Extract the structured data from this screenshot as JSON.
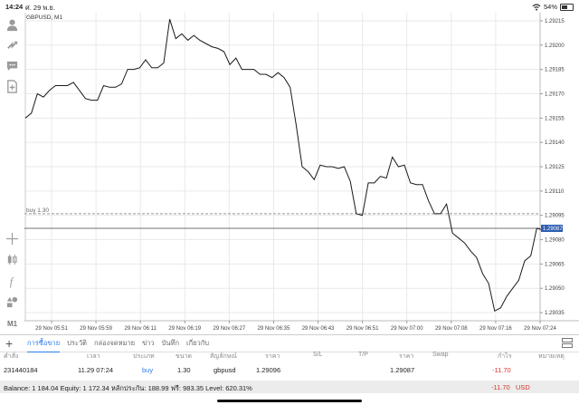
{
  "status": {
    "time": "14:24",
    "date": "ศ. 29 พ.ย.",
    "battery": "54%",
    "battery_level": 54
  },
  "sidebar": {
    "icons": [
      "user-icon",
      "trade-icon",
      "chat-icon",
      "document-add-icon",
      "crosshair-icon",
      "indicators-icon",
      "function-icon",
      "objects-icon"
    ],
    "timeframe": "M1"
  },
  "chart": {
    "symbol_label": "GBPUSD, M1",
    "order_line_label": "buy 1.30",
    "order_price": 1.29096,
    "current_price_label": "1.29087",
    "current_price": 1.29087,
    "colors": {
      "price_line": "#1a1a1a",
      "price_tag_bg": "#2f5fb3",
      "grid": "#e9e9e9"
    }
  },
  "chart_data": {
    "type": "line",
    "title": "GBPUSD, M1",
    "ylim": [
      1.2903,
      1.2922
    ],
    "y_ticks": [
      "1.29215",
      "1.29200",
      "1.29185",
      "1.29170",
      "1.29155",
      "1.29140",
      "1.29125",
      "1.29110",
      "1.29095",
      "1.29080",
      "1.29065",
      "1.29050",
      "1.29035"
    ],
    "x_ticks": [
      "29 Nov 05:51",
      "29 Nov 05:59",
      "29 Nov 06:11",
      "29 Nov 06:19",
      "29 Nov 06:27",
      "29 Nov 06:35",
      "29 Nov 06:43",
      "29 Nov 06:51",
      "29 Nov 07:00",
      "29 Nov 07:08",
      "29 Nov 07:16",
      "29 Nov 07:24"
    ],
    "series": [
      {
        "values": [
          1.29155,
          1.29158,
          1.2917,
          1.29168,
          1.29172,
          1.29175,
          1.29175,
          1.29175,
          1.29177,
          1.29172,
          1.29167,
          1.29166,
          1.29166,
          1.29175,
          1.29174,
          1.29174,
          1.29176,
          1.29185,
          1.29185,
          1.29186,
          1.29191,
          1.29186,
          1.29186,
          1.29189,
          1.29216,
          1.29204,
          1.29207,
          1.29203,
          1.29206,
          1.29203,
          1.29201,
          1.29199,
          1.29198,
          1.29196,
          1.29188,
          1.29192,
          1.29185,
          1.29185,
          1.29185,
          1.29182,
          1.29182,
          1.2918,
          1.29183,
          1.2918,
          1.29174,
          1.29151,
          1.29125,
          1.29122,
          1.29117,
          1.29126,
          1.29125,
          1.29125,
          1.29124,
          1.29125,
          1.29116,
          1.29096,
          1.29095,
          1.29115,
          1.29115,
          1.29119,
          1.29118,
          1.29131,
          1.29125,
          1.29126,
          1.29115,
          1.29114,
          1.29114,
          1.29104,
          1.29096,
          1.29096,
          1.29102,
          1.29084,
          1.29081,
          1.29078,
          1.29073,
          1.29069,
          1.29059,
          1.29053,
          1.29036,
          1.29038,
          1.29045,
          1.2905,
          1.29055,
          1.29067,
          1.2907,
          1.29087,
          1.29086
        ]
      }
    ]
  },
  "tabs": [
    "การซื้อขาย",
    "ประวัติ",
    "กล่องจดหมาย",
    "ข่าว",
    "บันทึก",
    "เกี่ยวกับ"
  ],
  "table": {
    "headers": [
      "คำสั่ง",
      "เวลา",
      "ประเภท",
      "ขนาด",
      "สัญลักษณ์",
      "ราคา",
      "S/L",
      "T/P",
      "ราคา",
      "Swap",
      "กำไร",
      "หมายเหตุ"
    ],
    "row": [
      "231440184",
      "11.29 07:24",
      "buy",
      "1.30",
      "gbpusd",
      "1.29096",
      "",
      "",
      "1.29087",
      "",
      "-11.70",
      ""
    ]
  },
  "balance": {
    "text": "Balance: 1 184.04 Equity: 1 172.34 หลักประกัน: 188.99 ฟรี: 983.35 Level: 620.31%",
    "profit": "-11.70",
    "currency": "USD"
  }
}
